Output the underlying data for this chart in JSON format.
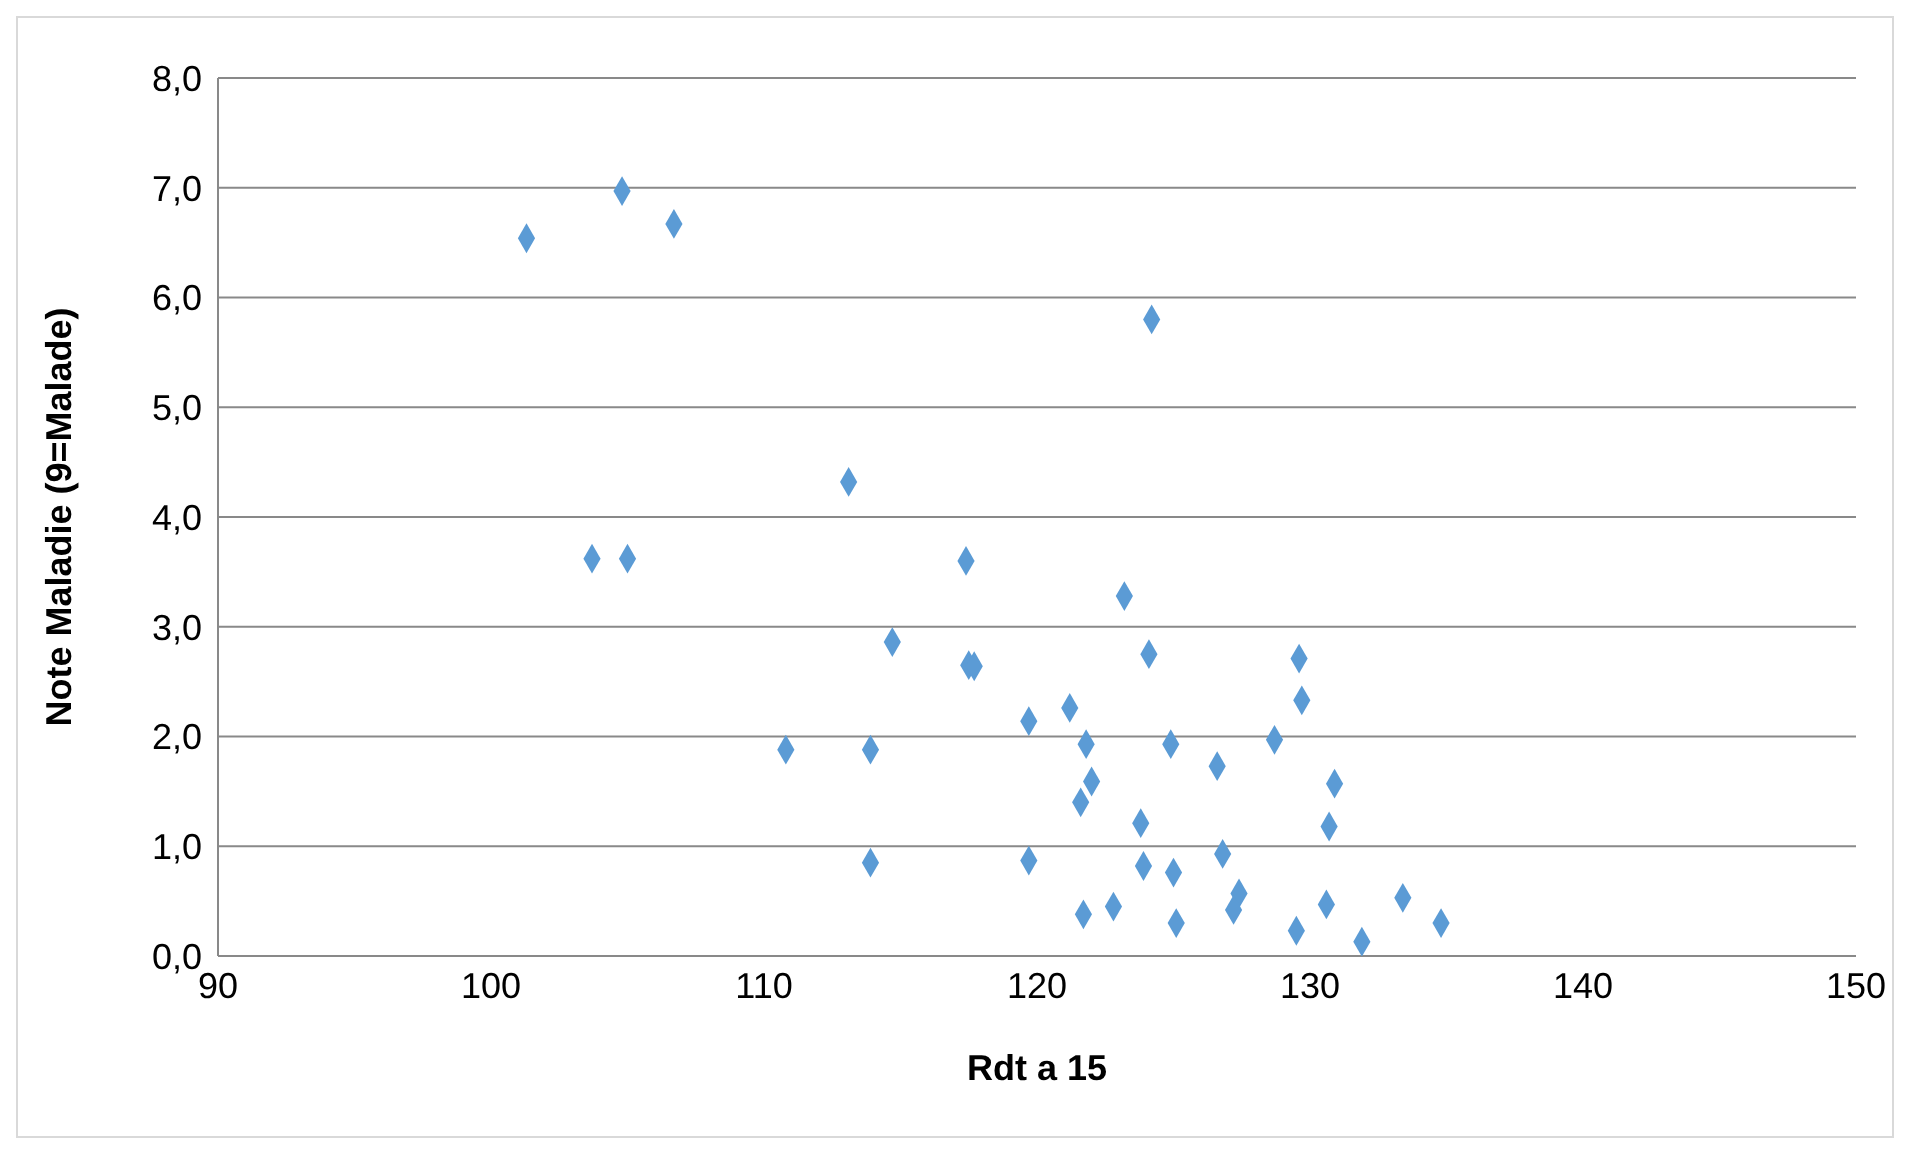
{
  "chart_data": {
    "type": "scatter",
    "xlabel": "Rdt a 15",
    "ylabel": "Note Maladie (9=Malade)",
    "x": [
      101.3,
      104.8,
      106.7,
      103.7,
      105.0,
      113.1,
      124.2,
      117.4,
      114.7,
      117.5,
      117.7,
      110.8,
      113.9,
      113.9,
      123.2,
      124.1,
      119.7,
      121.2,
      121.8,
      122.0,
      121.6,
      119.7,
      121.7,
      122.8,
      123.8,
      123.9,
      124.9,
      125.0,
      125.1,
      126.6,
      126.8,
      127.4,
      127.2,
      128.7,
      129.6,
      129.7,
      129.5,
      130.9,
      130.7,
      130.6,
      131.9,
      133.4,
      134.8
    ],
    "values": [
      6.54,
      6.97,
      6.67,
      3.62,
      3.62,
      4.32,
      5.8,
      3.6,
      2.86,
      2.65,
      2.64,
      1.88,
      1.88,
      0.85,
      3.28,
      2.75,
      2.14,
      2.26,
      1.93,
      1.59,
      1.4,
      0.87,
      0.38,
      0.45,
      1.21,
      0.82,
      1.93,
      0.76,
      0.3,
      1.73,
      0.93,
      0.57,
      0.42,
      1.97,
      2.71,
      2.33,
      0.23,
      1.57,
      1.18,
      0.47,
      0.13,
      0.53,
      0.3
    ],
    "color": "#5b9bd5",
    "marker": "diamond",
    "grid": "y",
    "legend": false,
    "xlim": [
      90,
      150
    ],
    "xticks": [
      90,
      100,
      110,
      120,
      130,
      140,
      150
    ],
    "ylim": [
      0,
      8
    ],
    "yticks": [
      {
        "value": 0,
        "label": "0,0"
      },
      {
        "value": 1,
        "label": "1,0"
      },
      {
        "value": 2,
        "label": "2,0"
      },
      {
        "value": 3,
        "label": "3,0"
      },
      {
        "value": 4,
        "label": "4,0"
      },
      {
        "value": 5,
        "label": "5,0"
      },
      {
        "value": 6,
        "label": "6,0"
      },
      {
        "value": 7,
        "label": "7,0"
      },
      {
        "value": 8,
        "label": "8,0"
      }
    ]
  }
}
